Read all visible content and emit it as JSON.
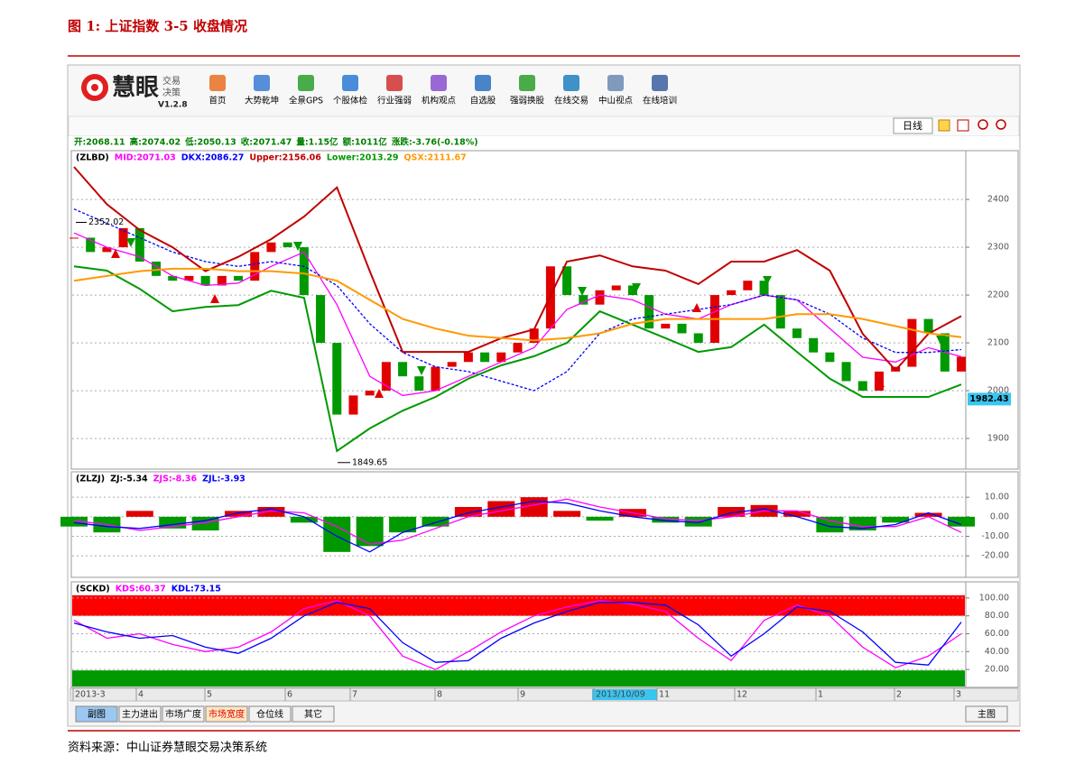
{
  "figure": {
    "title": "图 1:  上证指数 3-5 收盘情况",
    "source": "资料来源：中山证券慧眼交易决策系统"
  },
  "app": {
    "logo": "慧眼",
    "logo_sub": [
      "交易",
      "决策"
    ],
    "version": "V1.2.8",
    "toolbar": [
      "首页",
      "大势乾坤",
      "全景GPS",
      "个股体检",
      "行业强弱",
      "机构观点",
      "自选股",
      "强弱换股",
      "在线交易",
      "中山视点",
      "在线培训"
    ],
    "period_button": "日线",
    "quote": [
      "开:2068.11",
      "高:2074.02",
      "低:2050.13",
      "收:2071.47",
      "量:1.15亿",
      "额:1011亿",
      "涨跌:-3.76(-0.18%)"
    ],
    "x_axis_labels": [
      "2013-3",
      "4",
      "5",
      "6",
      "7",
      "8",
      "9",
      "2013/10/09",
      "11",
      "12",
      "1",
      "2",
      "3"
    ],
    "tabs": [
      "副图",
      "主力进出",
      "市场广度",
      "市场宽度",
      "仓位线",
      "其它"
    ],
    "main_tab": "主图"
  },
  "chart_data": [
    {
      "type": "candlestick",
      "legend_title": "(ZLBD)",
      "up_color": "#e00000",
      "down_color": "#009900",
      "closes": [
        2320,
        2290,
        2300,
        2340,
        2270,
        2240,
        2230,
        2240,
        2220,
        2240,
        2230,
        2290,
        2310,
        2300,
        2200,
        2100,
        1950,
        1990,
        2000,
        2060,
        2030,
        2000,
        2050,
        2060,
        2080,
        2060,
        2080,
        2100,
        2130,
        2260,
        2200,
        2180,
        2210,
        2220,
        2200,
        2130,
        2140,
        2120,
        2100,
        2200,
        2210,
        2230,
        2200,
        2130,
        2110,
        2080,
        2060,
        2020,
        2000,
        2040,
        2050,
        2150,
        2120,
        2040,
        2071
      ],
      "series": [
        {
          "name": "MID:2071.03",
          "color": "#ff00ff",
          "values": [
            2330,
            2300,
            2280,
            2240,
            2220,
            2225,
            2260,
            2290,
            2180,
            2030,
            1990,
            2000,
            2030,
            2060,
            2090,
            2170,
            2200,
            2190,
            2160,
            2150,
            2180,
            2200,
            2190,
            2130,
            2070,
            2060,
            2090,
            2071
          ]
        },
        {
          "name": "DKX:2086.27",
          "color": "#0000ff",
          "dashed": true,
          "values": [
            2380,
            2350,
            2320,
            2290,
            2270,
            2260,
            2270,
            2260,
            2220,
            2140,
            2080,
            2050,
            2040,
            2020,
            2000,
            2040,
            2120,
            2150,
            2160,
            2170,
            2180,
            2200,
            2190,
            2160,
            2110,
            2080,
            2080,
            2086
          ]
        },
        {
          "name": "Upper:2156.06",
          "color": "#c00000",
          "values": [
            2468,
            2390,
            2336,
            2300,
            2250,
            2280,
            2317,
            2364,
            2425,
            2250,
            2081,
            2081,
            2081,
            2110,
            2128,
            2270,
            2283,
            2260,
            2251,
            2223,
            2270,
            2270,
            2294,
            2251,
            2119,
            2043,
            2119,
            2156
          ]
        },
        {
          "name": "Lower:2013.29",
          "color": "#009900",
          "values": [
            2260,
            2251,
            2213,
            2166,
            2175,
            2179,
            2209,
            2194,
            1874,
            1921,
            1958,
            1987,
            2025,
            2053,
            2072,
            2100,
            2166,
            2138,
            2110,
            2081,
            2091,
            2138,
            2081,
            2025,
            1987,
            1987,
            1987,
            2013
          ]
        },
        {
          "name": "QSX:2111.67",
          "color": "#ff9900",
          "values": [
            2230,
            2240,
            2250,
            2255,
            2255,
            2250,
            2250,
            2245,
            2230,
            2190,
            2150,
            2130,
            2115,
            2110,
            2105,
            2110,
            2120,
            2140,
            2150,
            2150,
            2150,
            2150,
            2160,
            2160,
            2150,
            2135,
            2120,
            2112
          ]
        }
      ],
      "annotations": [
        {
          "value": 2352.02,
          "label": "2352.02"
        },
        {
          "value": 1849.65,
          "label": "1849.65"
        }
      ],
      "cursor_label": {
        "value": 1982.43,
        "label": "1982.43"
      },
      "ylim": [
        1836,
        2502
      ],
      "yticks": [
        1900,
        2000,
        2100,
        2200,
        2300,
        2400
      ],
      "grid": true
    },
    {
      "type": "bar-line",
      "legend_title": "(ZLZJ)",
      "up_color": "#e00000",
      "down_color": "#009900",
      "series": [
        {
          "name": "ZJ:-5.34",
          "color": "#000000",
          "bars": true,
          "values": [
            -5,
            -8,
            3,
            -6,
            -7,
            3,
            5,
            -3,
            -18,
            -15,
            -8,
            -5,
            5,
            8,
            10,
            3,
            -2,
            4,
            -3,
            -5,
            5,
            6,
            3,
            -8,
            -7,
            -3,
            2,
            -5
          ]
        },
        {
          "name": "ZJS:-8.36",
          "color": "#ff00ff",
          "values": [
            -2,
            -4,
            -7,
            -5,
            -3,
            0,
            3,
            2,
            -5,
            -14,
            -12,
            -6,
            0,
            3,
            6,
            9,
            5,
            2,
            -1,
            -2,
            0,
            3,
            3,
            -2,
            -5,
            -5,
            0,
            -8
          ]
        },
        {
          "name": "ZJL:-3.93",
          "color": "#0000ff",
          "values": [
            -3,
            -5,
            -6,
            -4,
            -2,
            2,
            4,
            0,
            -10,
            -18,
            -8,
            -3,
            2,
            5,
            8,
            7,
            3,
            0,
            -2,
            -3,
            2,
            4,
            0,
            -5,
            -6,
            -4,
            2,
            -4
          ]
        }
      ],
      "ylim": [
        -31,
        23
      ],
      "yticks": [
        {
          "value": -20,
          "label": "-20.00"
        },
        {
          "value": -10,
          "label": "-10.00"
        },
        {
          "value": 0,
          "label": "0.00"
        },
        {
          "value": 10,
          "label": "10.00"
        }
      ],
      "grid": true
    },
    {
      "type": "line",
      "legend_title": "(SCKD)",
      "band_colors": [
        "#ff0000",
        "#009900"
      ],
      "series": [
        {
          "name": "KDS:60.37",
          "color": "#ff00ff",
          "values": [
            75,
            55,
            60,
            48,
            40,
            45,
            62,
            88,
            97,
            80,
            35,
            20,
            40,
            62,
            80,
            90,
            97,
            93,
            85,
            55,
            30,
            75,
            92,
            80,
            45,
            22,
            35,
            60
          ]
        },
        {
          "name": "KDL:73.15",
          "color": "#0000ff",
          "values": [
            72,
            62,
            55,
            58,
            45,
            38,
            55,
            80,
            95,
            88,
            50,
            28,
            30,
            55,
            72,
            85,
            95,
            95,
            92,
            70,
            35,
            60,
            90,
            85,
            62,
            28,
            25,
            73
          ]
        }
      ],
      "ylim": [
        0,
        118
      ],
      "yticks": [
        {
          "value": 100,
          "label": "100.00"
        },
        {
          "value": 80,
          "label": "80.00"
        },
        {
          "value": 60,
          "label": "60.00"
        },
        {
          "value": 40,
          "label": "40.00"
        },
        {
          "value": 20,
          "label": "20.00"
        }
      ],
      "grid": true
    }
  ]
}
